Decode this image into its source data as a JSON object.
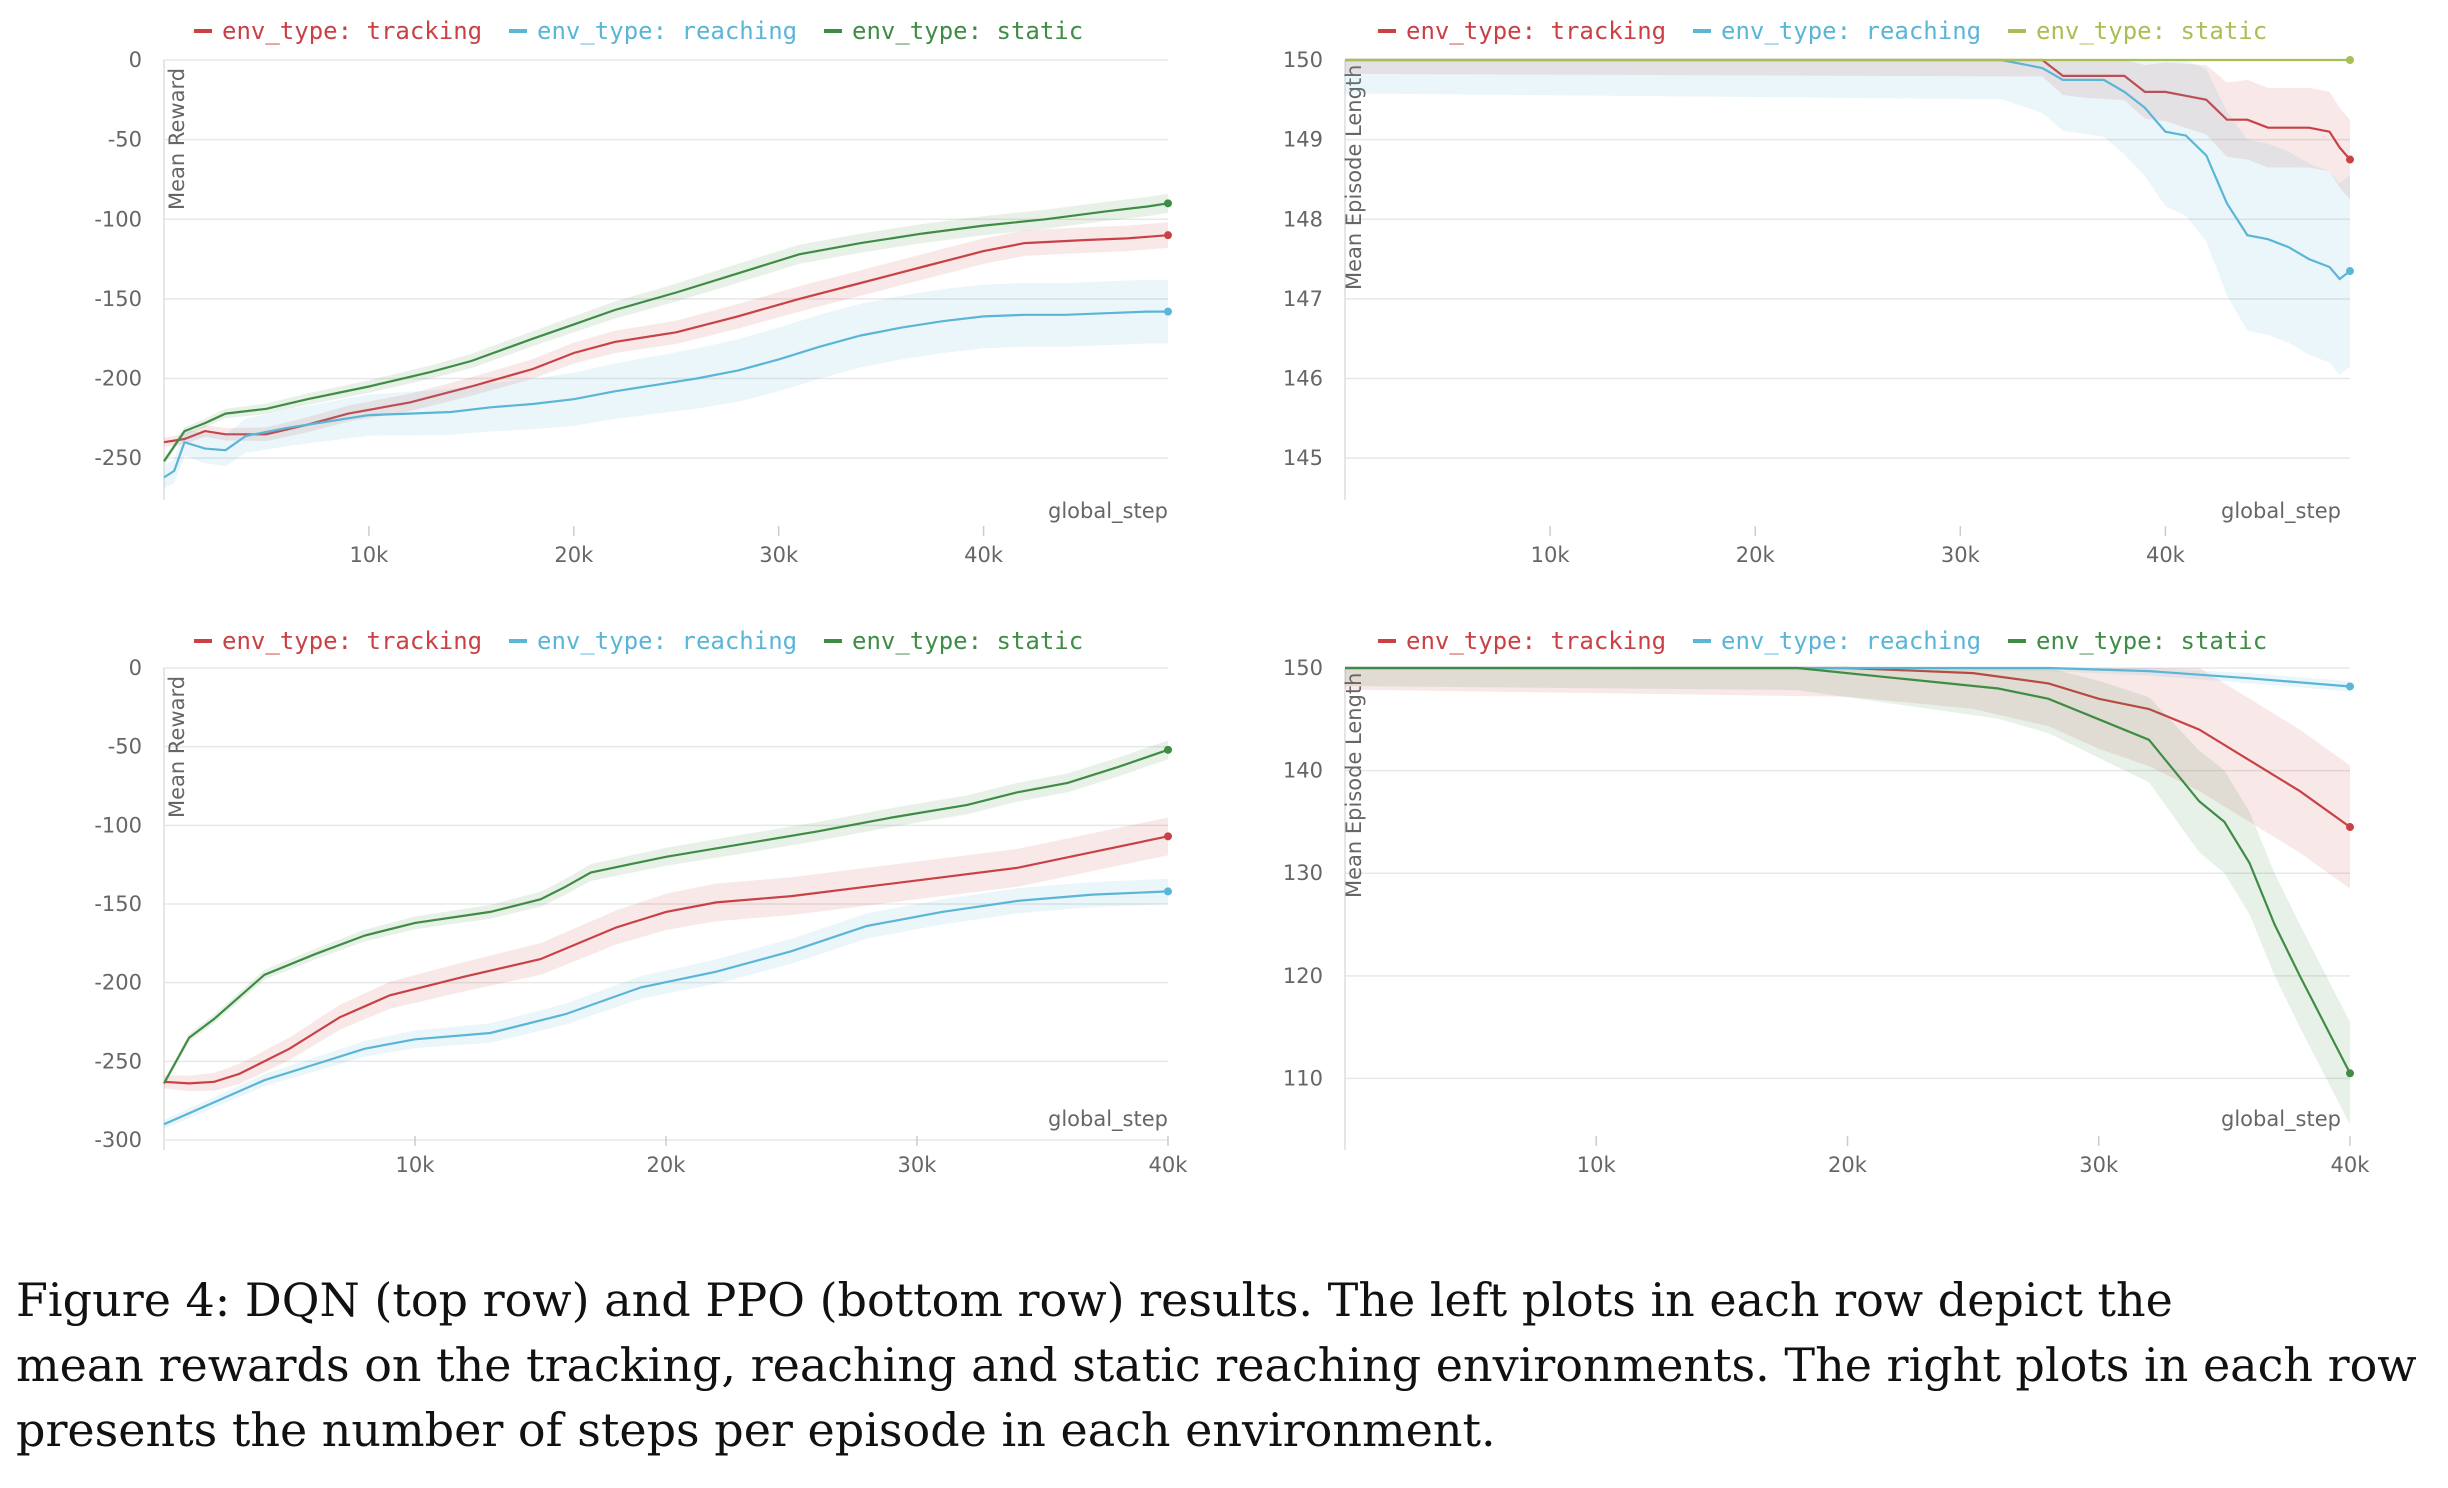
{
  "colors": {
    "tracking": "#c94145",
    "reaching": "#5ab5d6",
    "static": "#3f8c45",
    "static_len": "#a8bf55",
    "grid": "#e8e8e8",
    "axis": "#dddddd"
  },
  "chart_data": [
    {
      "type": "line",
      "ylabel": "Mean Reward",
      "xlabel": "global_step",
      "xlim": [
        0,
        49000
      ],
      "ylim": [
        -270,
        0
      ],
      "xticks": [
        {
          "v": 10000,
          "label": "10k"
        },
        {
          "v": 20000,
          "label": "20k"
        },
        {
          "v": 30000,
          "label": "30k"
        },
        {
          "v": 40000,
          "label": "40k"
        }
      ],
      "yticks": [
        {
          "v": 0,
          "label": "0"
        },
        {
          "v": -50,
          "label": "-50"
        },
        {
          "v": -100,
          "label": "-100"
        },
        {
          "v": -150,
          "label": "-150"
        },
        {
          "v": -200,
          "label": "-200"
        },
        {
          "v": -250,
          "label": "-250"
        }
      ],
      "series": [
        {
          "name": "env_type: tracking",
          "color": "tracking",
          "band": 8,
          "x": [
            0,
            1000,
            2000,
            3000,
            5000,
            7000,
            9000,
            12000,
            15000,
            18000,
            20000,
            22000,
            25000,
            28000,
            31000,
            34000,
            37000,
            40000,
            42000,
            45000,
            47000,
            48000,
            49000
          ],
          "y": [
            -240,
            -238,
            -233,
            -235,
            -235,
            -229,
            -222,
            -215,
            -205,
            -194,
            -184,
            -177,
            -171,
            -161,
            -150,
            -140,
            -130,
            -120,
            -115,
            -113,
            -112,
            -111,
            -110
          ]
        },
        {
          "name": "env_type: reaching",
          "color": "reaching",
          "band": 20,
          "x": [
            0,
            500,
            1000,
            2000,
            3000,
            4000,
            6000,
            8000,
            10000,
            12000,
            14000,
            16000,
            18000,
            20000,
            22000,
            24000,
            26000,
            28000,
            30000,
            32000,
            34000,
            36000,
            38000,
            40000,
            42000,
            44000,
            46000,
            48000,
            49000
          ],
          "y": [
            -262,
            -258,
            -240,
            -244,
            -245,
            -236,
            -231,
            -227,
            -223,
            -222,
            -221,
            -218,
            -216,
            -213,
            -208,
            -204,
            -200,
            -195,
            -188,
            -180,
            -173,
            -168,
            -164,
            -161,
            -160,
            -160,
            -159,
            -158,
            -158
          ]
        },
        {
          "name": "env_type: static",
          "color": "static",
          "band": 6,
          "x": [
            0,
            1000,
            2000,
            3000,
            5000,
            7000,
            10000,
            13000,
            15000,
            18000,
            20000,
            22000,
            25000,
            28000,
            31000,
            34000,
            37000,
            40000,
            43000,
            46000,
            48000,
            49000
          ],
          "y": [
            -252,
            -233,
            -228,
            -222,
            -219,
            -213,
            -205,
            -196,
            -189,
            -175,
            -166,
            -157,
            -146,
            -134,
            -122,
            -115,
            -109,
            -104,
            -100,
            -95,
            -92,
            -90
          ]
        }
      ]
    },
    {
      "type": "line",
      "ylabel": "Mean Episode Length",
      "xlabel": "global_step",
      "xlim": [
        0,
        49000
      ],
      "ylim": [
        144.6,
        150
      ],
      "xticks": [
        {
          "v": 10000,
          "label": "10k"
        },
        {
          "v": 20000,
          "label": "20k"
        },
        {
          "v": 30000,
          "label": "30k"
        },
        {
          "v": 40000,
          "label": "40k"
        }
      ],
      "yticks": [
        {
          "v": 150,
          "label": "150"
        },
        {
          "v": 149,
          "label": "149"
        },
        {
          "v": 148,
          "label": "148"
        },
        {
          "v": 147,
          "label": "147"
        },
        {
          "v": 146,
          "label": "146"
        },
        {
          "v": 145,
          "label": "145"
        }
      ],
      "series": [
        {
          "name": "env_type: tracking",
          "color": "tracking",
          "band": 0.5,
          "x": [
            0,
            34000,
            35000,
            36000,
            38000,
            39000,
            40000,
            41000,
            42000,
            43000,
            44000,
            45000,
            46000,
            47000,
            48000,
            48500,
            49000
          ],
          "y": [
            150,
            150,
            149.8,
            149.8,
            149.8,
            149.6,
            149.6,
            149.55,
            149.5,
            149.25,
            149.25,
            149.15,
            149.15,
            149.15,
            149.1,
            148.9,
            148.75
          ]
        },
        {
          "name": "env_type: reaching",
          "color": "reaching",
          "band": 1.2,
          "x": [
            0,
            32000,
            34000,
            35000,
            37000,
            38000,
            39000,
            40000,
            41000,
            42000,
            43000,
            44000,
            45000,
            46000,
            47000,
            48000,
            48500,
            49000
          ],
          "y": [
            150,
            150,
            149.9,
            149.75,
            149.75,
            149.6,
            149.4,
            149.1,
            149.05,
            148.8,
            148.2,
            147.8,
            147.75,
            147.65,
            147.5,
            147.4,
            147.25,
            147.35
          ]
        },
        {
          "name": "env_type: static",
          "color": "static_len",
          "band": 0,
          "x": [
            0,
            49000
          ],
          "y": [
            150,
            150
          ]
        }
      ]
    },
    {
      "type": "line",
      "ylabel": "Mean Reward",
      "xlabel": "global_step",
      "xlim": [
        0,
        40000
      ],
      "ylim": [
        -300,
        0
      ],
      "xticks": [
        {
          "v": 10000,
          "label": "10k"
        },
        {
          "v": 20000,
          "label": "20k"
        },
        {
          "v": 30000,
          "label": "30k"
        },
        {
          "v": 40000,
          "label": "40k"
        }
      ],
      "yticks": [
        {
          "v": 0,
          "label": "0"
        },
        {
          "v": -50,
          "label": "-50"
        },
        {
          "v": -100,
          "label": "-100"
        },
        {
          "v": -150,
          "label": "-150"
        },
        {
          "v": -200,
          "label": "-200"
        },
        {
          "v": -250,
          "label": "-250"
        },
        {
          "v": -300,
          "label": "-300"
        }
      ],
      "series": [
        {
          "name": "env_type: tracking",
          "color": "tracking",
          "band": 12,
          "x": [
            0,
            1000,
            2000,
            3000,
            5000,
            7000,
            9000,
            12000,
            15000,
            18000,
            20000,
            22000,
            25000,
            28000,
            31000,
            34000,
            37000,
            40000
          ],
          "y": [
            -263,
            -264,
            -263,
            -258,
            -242,
            -222,
            -208,
            -196,
            -185,
            -165,
            -155,
            -149,
            -145,
            -139,
            -133,
            -127,
            -117,
            -107
          ]
        },
        {
          "name": "env_type: reaching",
          "color": "reaching",
          "band": 8,
          "x": [
            0,
            2000,
            4000,
            6000,
            8000,
            10000,
            13000,
            16000,
            19000,
            22000,
            25000,
            28000,
            31000,
            34000,
            37000,
            40000
          ],
          "y": [
            -290,
            -276,
            -262,
            -252,
            -242,
            -236,
            -232,
            -220,
            -203,
            -193,
            -180,
            -164,
            -155,
            -148,
            -144,
            -142
          ]
        },
        {
          "name": "env_type: static",
          "color": "static",
          "band": 6,
          "x": [
            0,
            1000,
            2000,
            4000,
            6000,
            8000,
            10000,
            13000,
            15000,
            16000,
            17000,
            20000,
            23000,
            26000,
            29000,
            32000,
            34000,
            36000,
            38000,
            40000
          ],
          "y": [
            -264,
            -235,
            -223,
            -195,
            -182,
            -170,
            -162,
            -155,
            -147,
            -139,
            -130,
            -120,
            -112,
            -104,
            -95,
            -87,
            -79,
            -73,
            -63,
            -52
          ]
        }
      ]
    },
    {
      "type": "line",
      "ylabel": "Mean Episode Length",
      "xlabel": "global_step",
      "xlim": [
        0,
        40000
      ],
      "ylim": [
        104,
        150
      ],
      "xticks": [
        {
          "v": 10000,
          "label": "10k"
        },
        {
          "v": 20000,
          "label": "20k"
        },
        {
          "v": 30000,
          "label": "30k"
        },
        {
          "v": 40000,
          "label": "40k"
        }
      ],
      "yticks": [
        {
          "v": 150,
          "label": "150"
        },
        {
          "v": 140,
          "label": "140"
        },
        {
          "v": 130,
          "label": "130"
        },
        {
          "v": 120,
          "label": "120"
        },
        {
          "v": 110,
          "label": "110"
        }
      ],
      "series": [
        {
          "name": "env_type: tracking",
          "color": "tracking",
          "band": 6,
          "x": [
            0,
            20000,
            25000,
            28000,
            30000,
            32000,
            34000,
            36000,
            38000,
            40000
          ],
          "y": [
            150,
            150,
            149.5,
            148.5,
            147,
            146,
            144,
            141,
            138,
            134.5
          ]
        },
        {
          "name": "env_type: reaching",
          "color": "reaching",
          "band": 0.5,
          "x": [
            0,
            28000,
            32000,
            36000,
            40000
          ],
          "y": [
            150,
            150,
            149.7,
            149,
            148.2
          ]
        },
        {
          "name": "env_type: static",
          "color": "static",
          "band": 5,
          "x": [
            0,
            18000,
            22000,
            26000,
            28000,
            30000,
            32000,
            33000,
            34000,
            35000,
            36000,
            37000,
            38000,
            40000
          ],
          "y": [
            150,
            150,
            149,
            148,
            147,
            145,
            143,
            140,
            137,
            135,
            131,
            125,
            120,
            110.5
          ]
        }
      ]
    }
  ],
  "caption": {
    "lines": [
      "Figure 4:  DQN (top row) and PPO (bottom row) results.  The left plots in each row depict the",
      "mean rewards on the tracking, reaching and static reaching environments. The right plots in each row",
      "presents the number of steps per episode in each environment."
    ]
  }
}
